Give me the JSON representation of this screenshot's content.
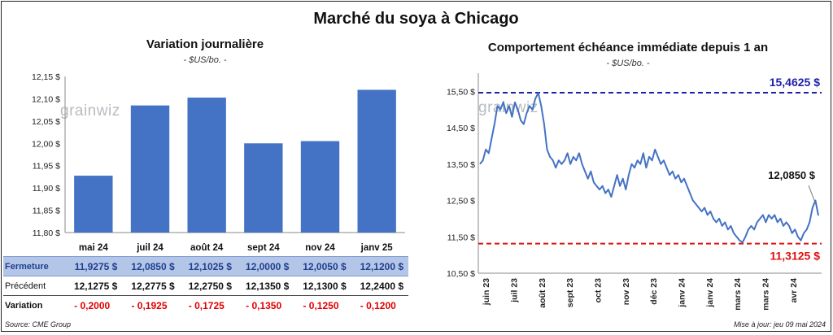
{
  "main_title": "Marché du soya à Chicago",
  "left_panel": {
    "title": "Variation  journalière",
    "unit": "- $US/bo. -",
    "watermark": "grainwiz"
  },
  "right_panel": {
    "title": "Comportement  échéance immédiate depuis 1 an",
    "unit": "- $US/bo. -",
    "watermark": "grainwiz",
    "high_label": "15,4625 $",
    "low_label": "11,3125 $",
    "last_label": "12,0850 $"
  },
  "table": {
    "rows": [
      {
        "label": "Fermeture",
        "values": [
          "11,9275  $",
          "12,0850  $",
          "12,1025  $",
          "12,0000  $",
          "12,0050  $",
          "12,1200  $"
        ]
      },
      {
        "label": "Précédent",
        "values": [
          "12,1275  $",
          "12,2775  $",
          "12,2750  $",
          "12,1350  $",
          "12,1300  $",
          "12,2400  $"
        ]
      },
      {
        "label": "Variation",
        "values": [
          "- 0,2000",
          "- 0,1925",
          "- 0,1725",
          "- 0,1350",
          "- 0,1250",
          "- 0,1200"
        ]
      }
    ]
  },
  "footer": {
    "source": "Source: CME Group",
    "update": "Mise à jour: jeu 09 mai 2024"
  },
  "colors": {
    "bar": "#4472c4",
    "line": "#4472c4",
    "high": "#1f1fa8",
    "low": "#e01010"
  },
  "chart_data": [
    {
      "type": "bar",
      "title": "Variation  journalière",
      "ylabel": "",
      "categories": [
        "mai 24",
        "juil 24",
        "août 24",
        "sept 24",
        "nov 24",
        "janv 25"
      ],
      "values": [
        11.9275,
        12.085,
        12.1025,
        12.0,
        12.005,
        12.12
      ],
      "ylim": [
        11.8,
        12.15
      ],
      "yticks": [
        11.8,
        11.85,
        11.9,
        11.95,
        12.0,
        12.05,
        12.1,
        12.15
      ],
      "ytick_labels": [
        "11,80 $",
        "11,85 $",
        "11,90 $",
        "11,95 $",
        "12,00 $",
        "12,05 $",
        "12,10 $",
        "12,15 $"
      ],
      "grid": false
    },
    {
      "type": "line",
      "title": "Comportement  échéance immédiate depuis 1 an",
      "ylim": [
        10.5,
        16.0
      ],
      "yticks": [
        10.5,
        11.5,
        12.5,
        13.5,
        14.5,
        15.5
      ],
      "ytick_labels": [
        "10,50 $",
        "11,50 $",
        "12,50 $",
        "13,50 $",
        "14,50 $",
        "15,50 $"
      ],
      "xticks": [
        "juin 23",
        "juil 23",
        "août 23",
        "sept 23",
        "oct 23",
        "nov 23",
        "déc 23",
        "janv 24",
        "janv 24",
        "mars 24",
        "mars 24",
        "avr 24"
      ],
      "high": 15.4625,
      "low": 11.3125,
      "last": 12.085,
      "grid": false,
      "series": [
        {
          "values": [
            13.5,
            13.6,
            13.9,
            13.8,
            14.2,
            14.6,
            15.1,
            15.0,
            15.2,
            14.9,
            15.1,
            14.8,
            15.2,
            15.0,
            14.7,
            14.6,
            14.9,
            15.1,
            15.0,
            15.3,
            15.46,
            15.1,
            14.6,
            13.9,
            13.7,
            13.6,
            13.4,
            13.6,
            13.5,
            13.6,
            13.8,
            13.5,
            13.7,
            13.6,
            13.8,
            13.5,
            13.3,
            13.1,
            13.3,
            13.0,
            12.9,
            12.8,
            12.9,
            12.7,
            12.8,
            12.6,
            12.9,
            13.2,
            12.9,
            13.1,
            12.8,
            13.2,
            13.5,
            13.4,
            13.6,
            13.5,
            13.8,
            13.4,
            13.7,
            13.6,
            13.9,
            13.7,
            13.5,
            13.6,
            13.4,
            13.2,
            13.3,
            13.1,
            13.2,
            13.0,
            13.1,
            12.9,
            12.7,
            12.5,
            12.4,
            12.3,
            12.2,
            12.3,
            12.1,
            12.2,
            12.0,
            11.9,
            12.0,
            11.8,
            11.9,
            11.7,
            11.8,
            11.6,
            11.5,
            11.4,
            11.35,
            11.5,
            11.7,
            11.8,
            11.7,
            11.9,
            12.0,
            12.1,
            11.9,
            12.1,
            12.0,
            12.1,
            11.9,
            12.0,
            11.8,
            11.9,
            11.8,
            11.6,
            11.7,
            11.5,
            11.4,
            11.6,
            11.7,
            11.9,
            12.3,
            12.5,
            12.085
          ]
        }
      ]
    }
  ]
}
